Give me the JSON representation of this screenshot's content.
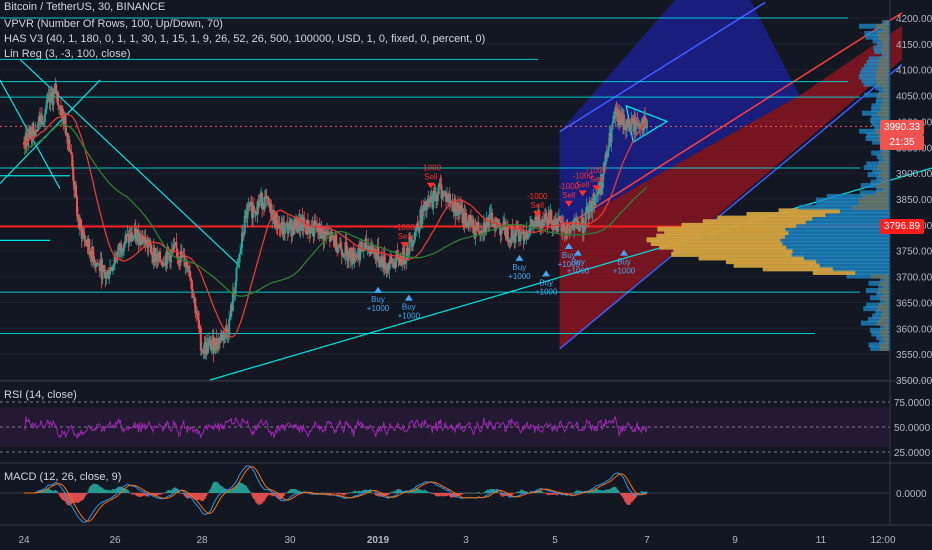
{
  "legend": {
    "title": "Bitcoin / TetherUS, 30, BINANCE",
    "line2": "VPVR (Number Of Rows, 100, Up/Down, 70)",
    "line3": "HAS V3 (40, 1, 180, 0, 1, 1, 30, 1, 15, 1, 9, 26, 52, 26, 500, 100000, USD, 1, 0, fixed, 0, percent, 0)",
    "line4": "Lin Reg (3, -3, 100, close)",
    "rsi": "RSI (14, close)",
    "macd": "MACD (12, 26, close, 9)"
  },
  "price_tags": {
    "last": "3990.33",
    "countdown": "21:35",
    "line": "3796.89"
  },
  "colors": {
    "background": "#131722",
    "up": "#26a69a",
    "down": "#ef5350",
    "cyan": "#00e5e5",
    "red_line": "#ff1e1e",
    "rsi": "#9c27b0",
    "macd": "#2196f3",
    "signal": "#ff6d00",
    "channel_blue": "#1f24c8",
    "channel_red": "#c8141e",
    "vol_blue": "#1e88c8",
    "vol_orange": "#f5a623"
  },
  "chart_data": [
    {
      "type": "candlestick",
      "title": "Bitcoin / TetherUS, 30, BINANCE",
      "x_tick_labels": [
        "24",
        "26",
        "28",
        "30",
        "2019",
        "3",
        "5",
        "7",
        "9",
        "11",
        "12:00"
      ],
      "y_ticks": [
        3500,
        3550,
        3600,
        3650,
        3700,
        3750,
        3800,
        3850,
        3900,
        3950,
        4000,
        4050,
        4100,
        4150,
        4200
      ],
      "ylim": [
        3500,
        4230
      ],
      "price_path": [
        [
          24.0,
          3960
        ],
        [
          24.4,
          4010
        ],
        [
          24.7,
          4060
        ],
        [
          25.0,
          3960
        ],
        [
          25.2,
          3800
        ],
        [
          25.5,
          3740
        ],
        [
          25.8,
          3700
        ],
        [
          26.2,
          3770
        ],
        [
          26.6,
          3780
        ],
        [
          27.0,
          3730
        ],
        [
          27.4,
          3750
        ],
        [
          27.7,
          3720
        ],
        [
          28.0,
          3560
        ],
        [
          28.3,
          3570
        ],
        [
          28.6,
          3600
        ],
        [
          29.0,
          3820
        ],
        [
          29.4,
          3850
        ],
        [
          29.8,
          3790
        ],
        [
          30.2,
          3800
        ],
        [
          30.6,
          3790
        ],
        [
          31.0,
          3770
        ],
        [
          31.4,
          3740
        ],
        [
          31.8,
          3760
        ],
        [
          32.2,
          3720
        ],
        [
          32.6,
          3740
        ],
        [
          33.0,
          3820
        ],
        [
          33.4,
          3870
        ],
        [
          33.8,
          3830
        ],
        [
          34.2,
          3790
        ],
        [
          34.6,
          3810
        ],
        [
          35.0,
          3780
        ],
        [
          35.4,
          3790
        ],
        [
          35.8,
          3820
        ],
        [
          36.2,
          3790
        ],
        [
          36.6,
          3800
        ],
        [
          37.0,
          3880
        ],
        [
          37.3,
          4010
        ],
        [
          37.6,
          3990
        ],
        [
          37.9,
          4000
        ],
        [
          38.0,
          3985
        ]
      ],
      "current_price": 3990.33,
      "horizontal_levels": [
        4200,
        4120,
        4077,
        4000,
        3910,
        3796.89,
        3670,
        3590
      ],
      "signals": [
        {
          "label": "Buy +1000",
          "x": 32.0,
          "y": 3680
        },
        {
          "label": "Buy +1000",
          "x": 32.7,
          "y": 3665
        },
        {
          "label": "Buy +1000",
          "x": 35.2,
          "y": 3742
        },
        {
          "label": "Buy +1000",
          "x": 35.8,
          "y": 3712
        },
        {
          "label": "Buy +1000",
          "x": 36.3,
          "y": 3765
        },
        {
          "label": "Buy +1000",
          "x": 36.5,
          "y": 3752
        },
        {
          "label": "Buy +1000",
          "x": 37.5,
          "y": 3752
        },
        {
          "label": "-1000 Sell",
          "x": 32.6,
          "y": 3755
        },
        {
          "label": "-1000 Sell",
          "x": 33.2,
          "y": 3870
        },
        {
          "label": "-1000 Sell",
          "x": 35.6,
          "y": 3815
        },
        {
          "label": "-1000 Sell",
          "x": 36.3,
          "y": 3835
        },
        {
          "label": "-1000 Sell",
          "x": 36.6,
          "y": 3855
        },
        {
          "label": "-1000 Sell",
          "x": 36.9,
          "y": 3865
        }
      ]
    },
    {
      "type": "line",
      "title": "RSI (14, close)",
      "y_ticks": [
        25,
        50,
        75
      ],
      "tick_labels": [
        "25.0000",
        "50.0000",
        "75.0000"
      ],
      "ylim": [
        15,
        95
      ],
      "bands": [
        30,
        70
      ]
    },
    {
      "type": "line",
      "title": "MACD (12, 26, close, 9)",
      "y_ticks": [
        0
      ],
      "tick_labels": [
        "0.0000"
      ]
    }
  ]
}
